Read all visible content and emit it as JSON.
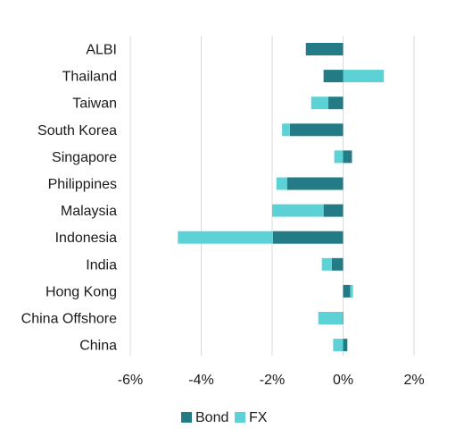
{
  "chart_data": {
    "type": "bar",
    "orientation": "horizontal",
    "stacked": true,
    "categories": [
      "ALBI",
      "Thailand",
      "Taiwan",
      "South Korea",
      "Singapore",
      "Philippines",
      "Malaysia",
      "Indonesia",
      "India",
      "Hong Kong",
      "China Offshore",
      "China"
    ],
    "series": [
      {
        "name": "Bond",
        "color": "#237b86",
        "values": [
          -1.05,
          -0.55,
          -0.42,
          -1.5,
          0.25,
          -1.58,
          -0.55,
          -1.98,
          -0.32,
          0.2,
          -0.02,
          0.12
        ]
      },
      {
        "name": "FX",
        "color": "#5dd2d6",
        "values": [
          0.0,
          1.15,
          -0.48,
          -0.22,
          -0.25,
          -0.3,
          -1.45,
          -2.68,
          -0.28,
          0.08,
          -0.68,
          -0.28
        ]
      }
    ],
    "xlim": [
      -6,
      2
    ],
    "xticks": [
      -6,
      -4,
      -2,
      0,
      2
    ],
    "xtick_labels": [
      "-6%",
      "-4%",
      "-2%",
      "0%",
      "2%"
    ],
    "grid": "vertical",
    "legend_position": "bottom"
  }
}
